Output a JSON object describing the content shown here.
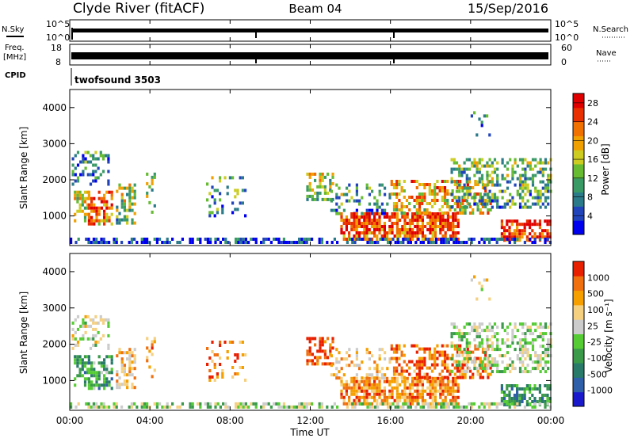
{
  "header": {
    "station": "Clyde River (fitACF)",
    "beam": "Beam 04",
    "date": "15/Sep/2016"
  },
  "top_panels": {
    "nsky_label": "N.Sky",
    "nsearch_label": "N.Search",
    "freq_label_1": "Freq.",
    "freq_label_2": "[MHz]",
    "nave_label": "Nave",
    "cpid_label": "CPID",
    "cpid_value": "twofsound 3503",
    "nsky_ticks": [
      "10^5",
      "10^0"
    ],
    "nsearch_ticks": [
      "10^5",
      "10^0"
    ],
    "freq_ticks": [
      "18",
      "8"
    ],
    "nave_ticks": [
      "60",
      "0"
    ]
  },
  "chart_data": [
    {
      "type": "heatmap",
      "name": "power",
      "xlabel": "Time UT",
      "ylabel": "Slant Range [km]",
      "ylim": [
        180,
        4500
      ],
      "x_ticks": [
        "00:00",
        "04:00",
        "08:00",
        "12:00",
        "16:00",
        "20:00",
        "00:00"
      ],
      "y_ticks": [
        1000,
        2000,
        3000,
        4000
      ],
      "colorbar": {
        "label": "Power [dB]",
        "ticks": [
          4,
          8,
          12,
          16,
          20,
          24,
          28
        ],
        "range": [
          0,
          30
        ],
        "colors": [
          "#0000ee",
          "#2244bb",
          "#2a7a8a",
          "#3a9a66",
          "#66bb33",
          "#cccc22",
          "#f0a000",
          "#f07000",
          "#e83000",
          "#e00000"
        ]
      }
    },
    {
      "type": "heatmap",
      "name": "velocity",
      "xlabel": "Time UT",
      "ylabel": "Slant Range [km]",
      "ylim": [
        180,
        4500
      ],
      "x_ticks": [
        "00:00",
        "04:00",
        "08:00",
        "12:00",
        "16:00",
        "20:00",
        "00:00"
      ],
      "y_ticks": [
        1000,
        2000,
        3000,
        4000
      ],
      "colorbar": {
        "label": "Velocity [m s⁻¹]",
        "ticks": [
          "1000",
          "500",
          "100",
          "25",
          "-25",
          "-100",
          "-500",
          "-1000"
        ],
        "colors": [
          "#1a1acc",
          "#2f5fa8",
          "#2a7a6a",
          "#3a9a4a",
          "#55cc33",
          "#cccccc",
          "#f5d080",
          "#f5a000",
          "#f07010",
          "#e82000"
        ]
      }
    }
  ]
}
